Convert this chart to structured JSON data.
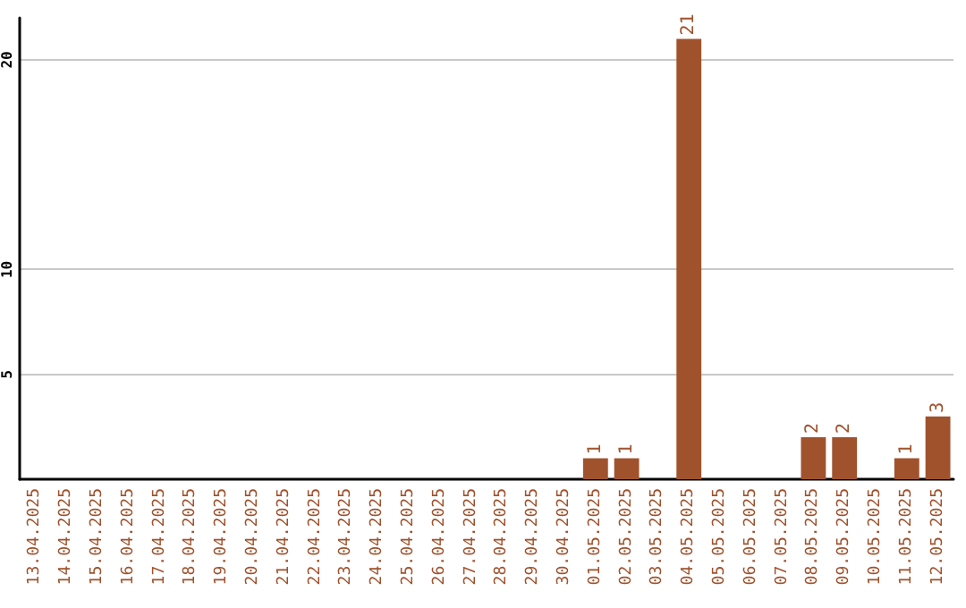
{
  "chart_data": {
    "type": "bar",
    "categories": [
      "13.04.2025",
      "14.04.2025",
      "15.04.2025",
      "16.04.2025",
      "17.04.2025",
      "18.04.2025",
      "19.04.2025",
      "20.04.2025",
      "21.04.2025",
      "22.04.2025",
      "23.04.2025",
      "24.04.2025",
      "25.04.2025",
      "26.04.2025",
      "27.04.2025",
      "28.04.2025",
      "29.04.2025",
      "30.04.2025",
      "01.05.2025",
      "02.05.2025",
      "03.05.2025",
      "04.05.2025",
      "05.05.2025",
      "06.05.2025",
      "07.05.2025",
      "08.05.2025",
      "09.05.2025",
      "10.05.2025",
      "11.05.2025",
      "12.05.2025"
    ],
    "values": [
      0,
      0,
      0,
      0,
      0,
      0,
      0,
      0,
      0,
      0,
      0,
      0,
      0,
      0,
      0,
      0,
      0,
      0,
      1,
      1,
      0,
      21,
      0,
      0,
      0,
      2,
      2,
      0,
      1,
      3
    ],
    "value_labels": [
      null,
      null,
      null,
      null,
      null,
      null,
      null,
      null,
      null,
      null,
      null,
      null,
      null,
      null,
      null,
      null,
      null,
      null,
      "1",
      "1",
      null,
      "21",
      null,
      null,
      null,
      "2",
      "2",
      null,
      "1",
      "3"
    ],
    "color": "#a0522d",
    "ylim": [
      0,
      22
    ],
    "yticks": [
      5,
      10,
      20
    ],
    "grid": "y"
  }
}
